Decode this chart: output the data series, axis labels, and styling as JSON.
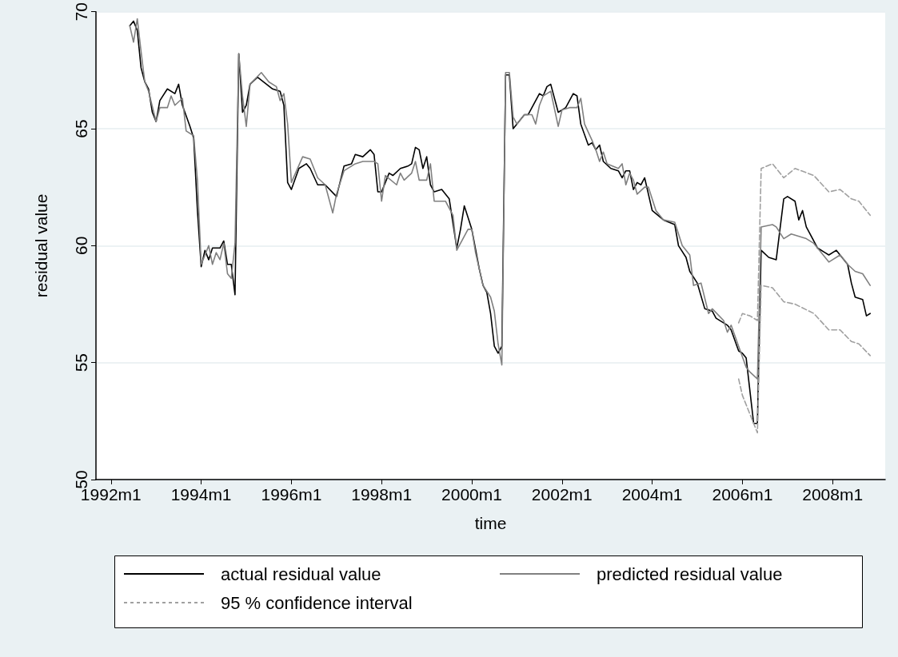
{
  "chart_data": {
    "type": "line",
    "xlabel": "time",
    "ylabel": "residual value",
    "xlim": [
      "1991-09",
      "2009-03"
    ],
    "xticks": [
      {
        "value": "1992-01",
        "label": "1992m1"
      },
      {
        "value": "1994-01",
        "label": "1994m1"
      },
      {
        "value": "1996-01",
        "label": "1996m1"
      },
      {
        "value": "1998-01",
        "label": "1998m1"
      },
      {
        "value": "2000-01",
        "label": "2000m1"
      },
      {
        "value": "2002-01",
        "label": "2002m1"
      },
      {
        "value": "2004-01",
        "label": "2004m1"
      },
      {
        "value": "2006-01",
        "label": "2006m1"
      },
      {
        "value": "2008-01",
        "label": "2008m1"
      }
    ],
    "ylim": [
      50,
      70
    ],
    "yticks": [
      50,
      55,
      60,
      65,
      70
    ],
    "grid": "y",
    "legend": "bottom",
    "series": [
      {
        "name": "actual residual value",
        "color": "#000000",
        "line_style": "solid",
        "x": [
          "1992-06",
          "1992-07",
          "1992-08",
          "1992-09",
          "1992-10",
          "1992-11",
          "1992-12",
          "1993-01",
          "1993-02",
          "1993-04",
          "1993-06",
          "1993-07",
          "1993-08",
          "1993-10",
          "1993-11",
          "1993-12",
          "1994-01",
          "1994-02",
          "1994-03",
          "1994-04",
          "1994-06",
          "1994-07",
          "1994-08",
          "1994-09",
          "1994-10",
          "1994-11",
          "1994-12",
          "1995-01",
          "1995-02",
          "1995-04",
          "1995-08",
          "1995-10",
          "1995-11",
          "1995-12",
          "1996-01",
          "1996-03",
          "1996-05",
          "1996-06",
          "1996-08",
          "1996-10",
          "1997-01",
          "1997-03",
          "1997-05",
          "1997-06",
          "1997-08",
          "1997-10",
          "1997-11",
          "1997-12",
          "1998-01",
          "1998-03",
          "1998-04",
          "1998-06",
          "1998-08",
          "1998-09",
          "1998-10",
          "1998-11",
          "1998-12",
          "1999-01",
          "1999-02",
          "1999-03",
          "1999-05",
          "1999-07",
          "1999-09",
          "1999-10",
          "1999-11",
          "2000-01",
          "2000-03",
          "2000-04",
          "2000-05",
          "2000-06",
          "2000-07",
          "2000-08",
          "2000-09",
          "2000-10",
          "2000-11",
          "2000-12",
          "2001-01",
          "2001-03",
          "2001-04",
          "2001-06",
          "2001-07",
          "2001-08",
          "2001-09",
          "2001-10",
          "2001-12",
          "2002-02",
          "2002-04",
          "2002-05",
          "2002-06",
          "2002-08",
          "2002-09",
          "2002-10",
          "2002-11",
          "2002-12",
          "2003-02",
          "2003-04",
          "2003-05",
          "2003-06",
          "2003-07",
          "2003-08",
          "2003-09",
          "2003-10",
          "2003-11",
          "2004-01",
          "2004-04",
          "2004-07",
          "2004-08",
          "2004-10",
          "2004-11",
          "2005-01",
          "2005-03",
          "2005-05",
          "2005-06",
          "2005-09",
          "2005-10",
          "2005-12",
          "2006-01",
          "2006-02",
          "2006-04",
          "2006-05",
          "2006-06",
          "2006-08",
          "2006-10",
          "2006-12",
          "2007-01",
          "2007-03",
          "2007-04",
          "2007-05",
          "2007-06",
          "2007-09",
          "2007-11",
          "2007-12",
          "2008-02",
          "2008-05",
          "2008-06",
          "2008-07",
          "2008-09",
          "2008-10",
          "2008-11"
        ],
        "values": [
          69.4,
          69.6,
          69.2,
          67.6,
          67.0,
          66.7,
          65.7,
          65.3,
          66.2,
          66.7,
          66.5,
          66.9,
          66.0,
          65.1,
          64.6,
          61.5,
          59.1,
          59.8,
          59.4,
          59.9,
          59.9,
          60.2,
          59.2,
          59.2,
          57.9,
          68.2,
          65.7,
          66.0,
          66.9,
          67.2,
          66.7,
          66.6,
          66.0,
          62.7,
          62.4,
          63.3,
          63.5,
          63.3,
          62.6,
          62.6,
          62.1,
          63.4,
          63.5,
          63.9,
          63.8,
          64.1,
          63.9,
          62.3,
          62.3,
          63.1,
          63.0,
          63.3,
          63.4,
          63.5,
          64.2,
          64.1,
          63.3,
          63.8,
          62.6,
          62.3,
          62.4,
          62.0,
          59.9,
          60.7,
          61.7,
          60.7,
          59.0,
          58.3,
          58.0,
          57.1,
          55.7,
          55.4,
          55.7,
          67.3,
          67.3,
          65.0,
          65.2,
          65.6,
          65.6,
          66.2,
          66.5,
          66.4,
          66.8,
          66.9,
          65.7,
          65.9,
          66.5,
          66.4,
          65.2,
          64.3,
          64.4,
          64.1,
          64.3,
          63.6,
          63.3,
          63.2,
          62.9,
          63.2,
          63.2,
          62.4,
          62.7,
          62.6,
          62.9,
          61.5,
          61.1,
          60.9,
          60.0,
          59.5,
          58.9,
          58.4,
          57.3,
          57.2,
          56.9,
          56.6,
          56.4,
          55.5,
          55.4,
          55.2,
          52.4,
          52.4,
          59.8,
          59.5,
          59.4,
          62.0,
          62.1,
          61.9,
          61.1,
          61.5,
          60.8,
          59.9,
          59.7,
          59.6,
          59.8,
          59.2,
          58.4,
          57.8,
          57.7,
          57.0,
          57.1
        ]
      },
      {
        "name": "predicted residual value",
        "color": "#808080",
        "line_style": "solid",
        "x": [
          "1992-06",
          "1992-07",
          "1992-08",
          "1992-09",
          "1992-10",
          "1992-11",
          "1993-01",
          "1993-02",
          "1993-04",
          "1993-05",
          "1993-06",
          "1993-08",
          "1993-09",
          "1993-11",
          "1993-12",
          "1994-01",
          "1994-03",
          "1994-04",
          "1994-05",
          "1994-06",
          "1994-07",
          "1994-08",
          "1994-09",
          "1994-10",
          "1994-11",
          "1994-12",
          "1995-01",
          "1995-02",
          "1995-05",
          "1995-07",
          "1995-09",
          "1995-10",
          "1995-11",
          "1995-12",
          "1996-01",
          "1996-04",
          "1996-06",
          "1996-08",
          "1996-10",
          "1996-12",
          "1997-01",
          "1997-03",
          "1997-06",
          "1997-08",
          "1997-10",
          "1997-11",
          "1997-12",
          "1998-01",
          "1998-02",
          "1998-05",
          "1998-06",
          "1998-07",
          "1998-09",
          "1998-10",
          "1998-11",
          "1999-01",
          "1999-02",
          "1999-03",
          "1999-05",
          "1999-06",
          "1999-08",
          "1999-09",
          "1999-12",
          "2000-01",
          "2000-02",
          "2000-04",
          "2000-06",
          "2000-07",
          "2000-08",
          "2000-09",
          "2000-10",
          "2000-11",
          "2000-12",
          "2001-01",
          "2001-03",
          "2001-05",
          "2001-06",
          "2001-07",
          "2001-08",
          "2001-09",
          "2001-10",
          "2001-12",
          "2002-01",
          "2002-03",
          "2002-05",
          "2002-06",
          "2002-07",
          "2002-09",
          "2002-10",
          "2002-11",
          "2002-12",
          "2003-01",
          "2003-04",
          "2003-05",
          "2003-06",
          "2003-07",
          "2003-08",
          "2003-09",
          "2003-11",
          "2003-12",
          "2004-02",
          "2004-04",
          "2004-07",
          "2004-09",
          "2004-11",
          "2004-12",
          "2005-02",
          "2005-04",
          "2005-05",
          "2005-08",
          "2005-09",
          "2005-10",
          "2005-12",
          "2006-02",
          "2006-03",
          "2006-05",
          "2006-06",
          "2006-09",
          "2006-10",
          "2006-12",
          "2007-02",
          "2007-06",
          "2007-08",
          "2007-12",
          "2008-03",
          "2008-05",
          "2008-07",
          "2008-09",
          "2008-11"
        ],
        "values": [
          69.4,
          68.7,
          69.7,
          68.3,
          67.0,
          66.6,
          65.3,
          65.9,
          65.9,
          66.4,
          66.0,
          66.3,
          64.9,
          64.7,
          62.8,
          59.2,
          60.0,
          59.2,
          59.7,
          59.4,
          60.1,
          58.8,
          58.6,
          60.1,
          68.2,
          66.4,
          65.1,
          66.9,
          67.4,
          67.0,
          66.8,
          66.2,
          66.5,
          65.2,
          62.7,
          63.8,
          63.7,
          62.9,
          62.6,
          61.4,
          62.2,
          63.2,
          63.5,
          63.6,
          63.6,
          63.6,
          63.5,
          61.9,
          63.0,
          62.6,
          63.1,
          62.8,
          63.1,
          63.6,
          62.8,
          62.8,
          63.5,
          61.9,
          61.9,
          61.9,
          61.3,
          59.8,
          60.7,
          60.7,
          59.7,
          58.3,
          57.8,
          57.2,
          55.8,
          54.9,
          67.4,
          67.4,
          65.5,
          65.2,
          65.6,
          65.6,
          65.2,
          66.0,
          66.4,
          66.5,
          66.6,
          65.1,
          65.8,
          65.9,
          65.9,
          66.3,
          65.2,
          64.5,
          64.1,
          63.6,
          64.0,
          63.5,
          63.3,
          63.5,
          62.6,
          63.1,
          62.8,
          62.2,
          62.5,
          62.5,
          61.5,
          61.1,
          61.0,
          60.0,
          59.6,
          58.3,
          58.4,
          57.1,
          57.3,
          56.8,
          56.3,
          56.6,
          55.7,
          54.8,
          54.6,
          54.3,
          60.8,
          60.9,
          60.8,
          60.3,
          60.5,
          60.3,
          60.1,
          59.3,
          59.6,
          59.2,
          58.9,
          58.8,
          58.3
        ]
      },
      {
        "name": "95 % confidence interval",
        "color": "#a0a0a0",
        "line_style": "dashed",
        "x": [
          "2005-12",
          "2006-01",
          "2006-03",
          "2006-05",
          "2006-06",
          "2006-09",
          "2006-12",
          "2007-03",
          "2007-08",
          "2007-12",
          "2008-03",
          "2008-06",
          "2008-08",
          "2008-11",
          "2005-12",
          "2006-01",
          "2006-03",
          "2006-05",
          "2006-06",
          "2006-09",
          "2006-12",
          "2007-03",
          "2007-08",
          "2007-12",
          "2008-03",
          "2008-06",
          "2008-08",
          "2008-11"
        ],
        "values": [
          56.7,
          57.1,
          57.0,
          56.8,
          63.3,
          63.5,
          62.9,
          63.3,
          63.0,
          62.3,
          62.4,
          62.0,
          61.9,
          61.3,
          54.3,
          53.6,
          52.8,
          52.0,
          58.3,
          58.2,
          57.6,
          57.5,
          57.1,
          56.4,
          56.4,
          55.9,
          55.8,
          55.3
        ]
      }
    ]
  }
}
